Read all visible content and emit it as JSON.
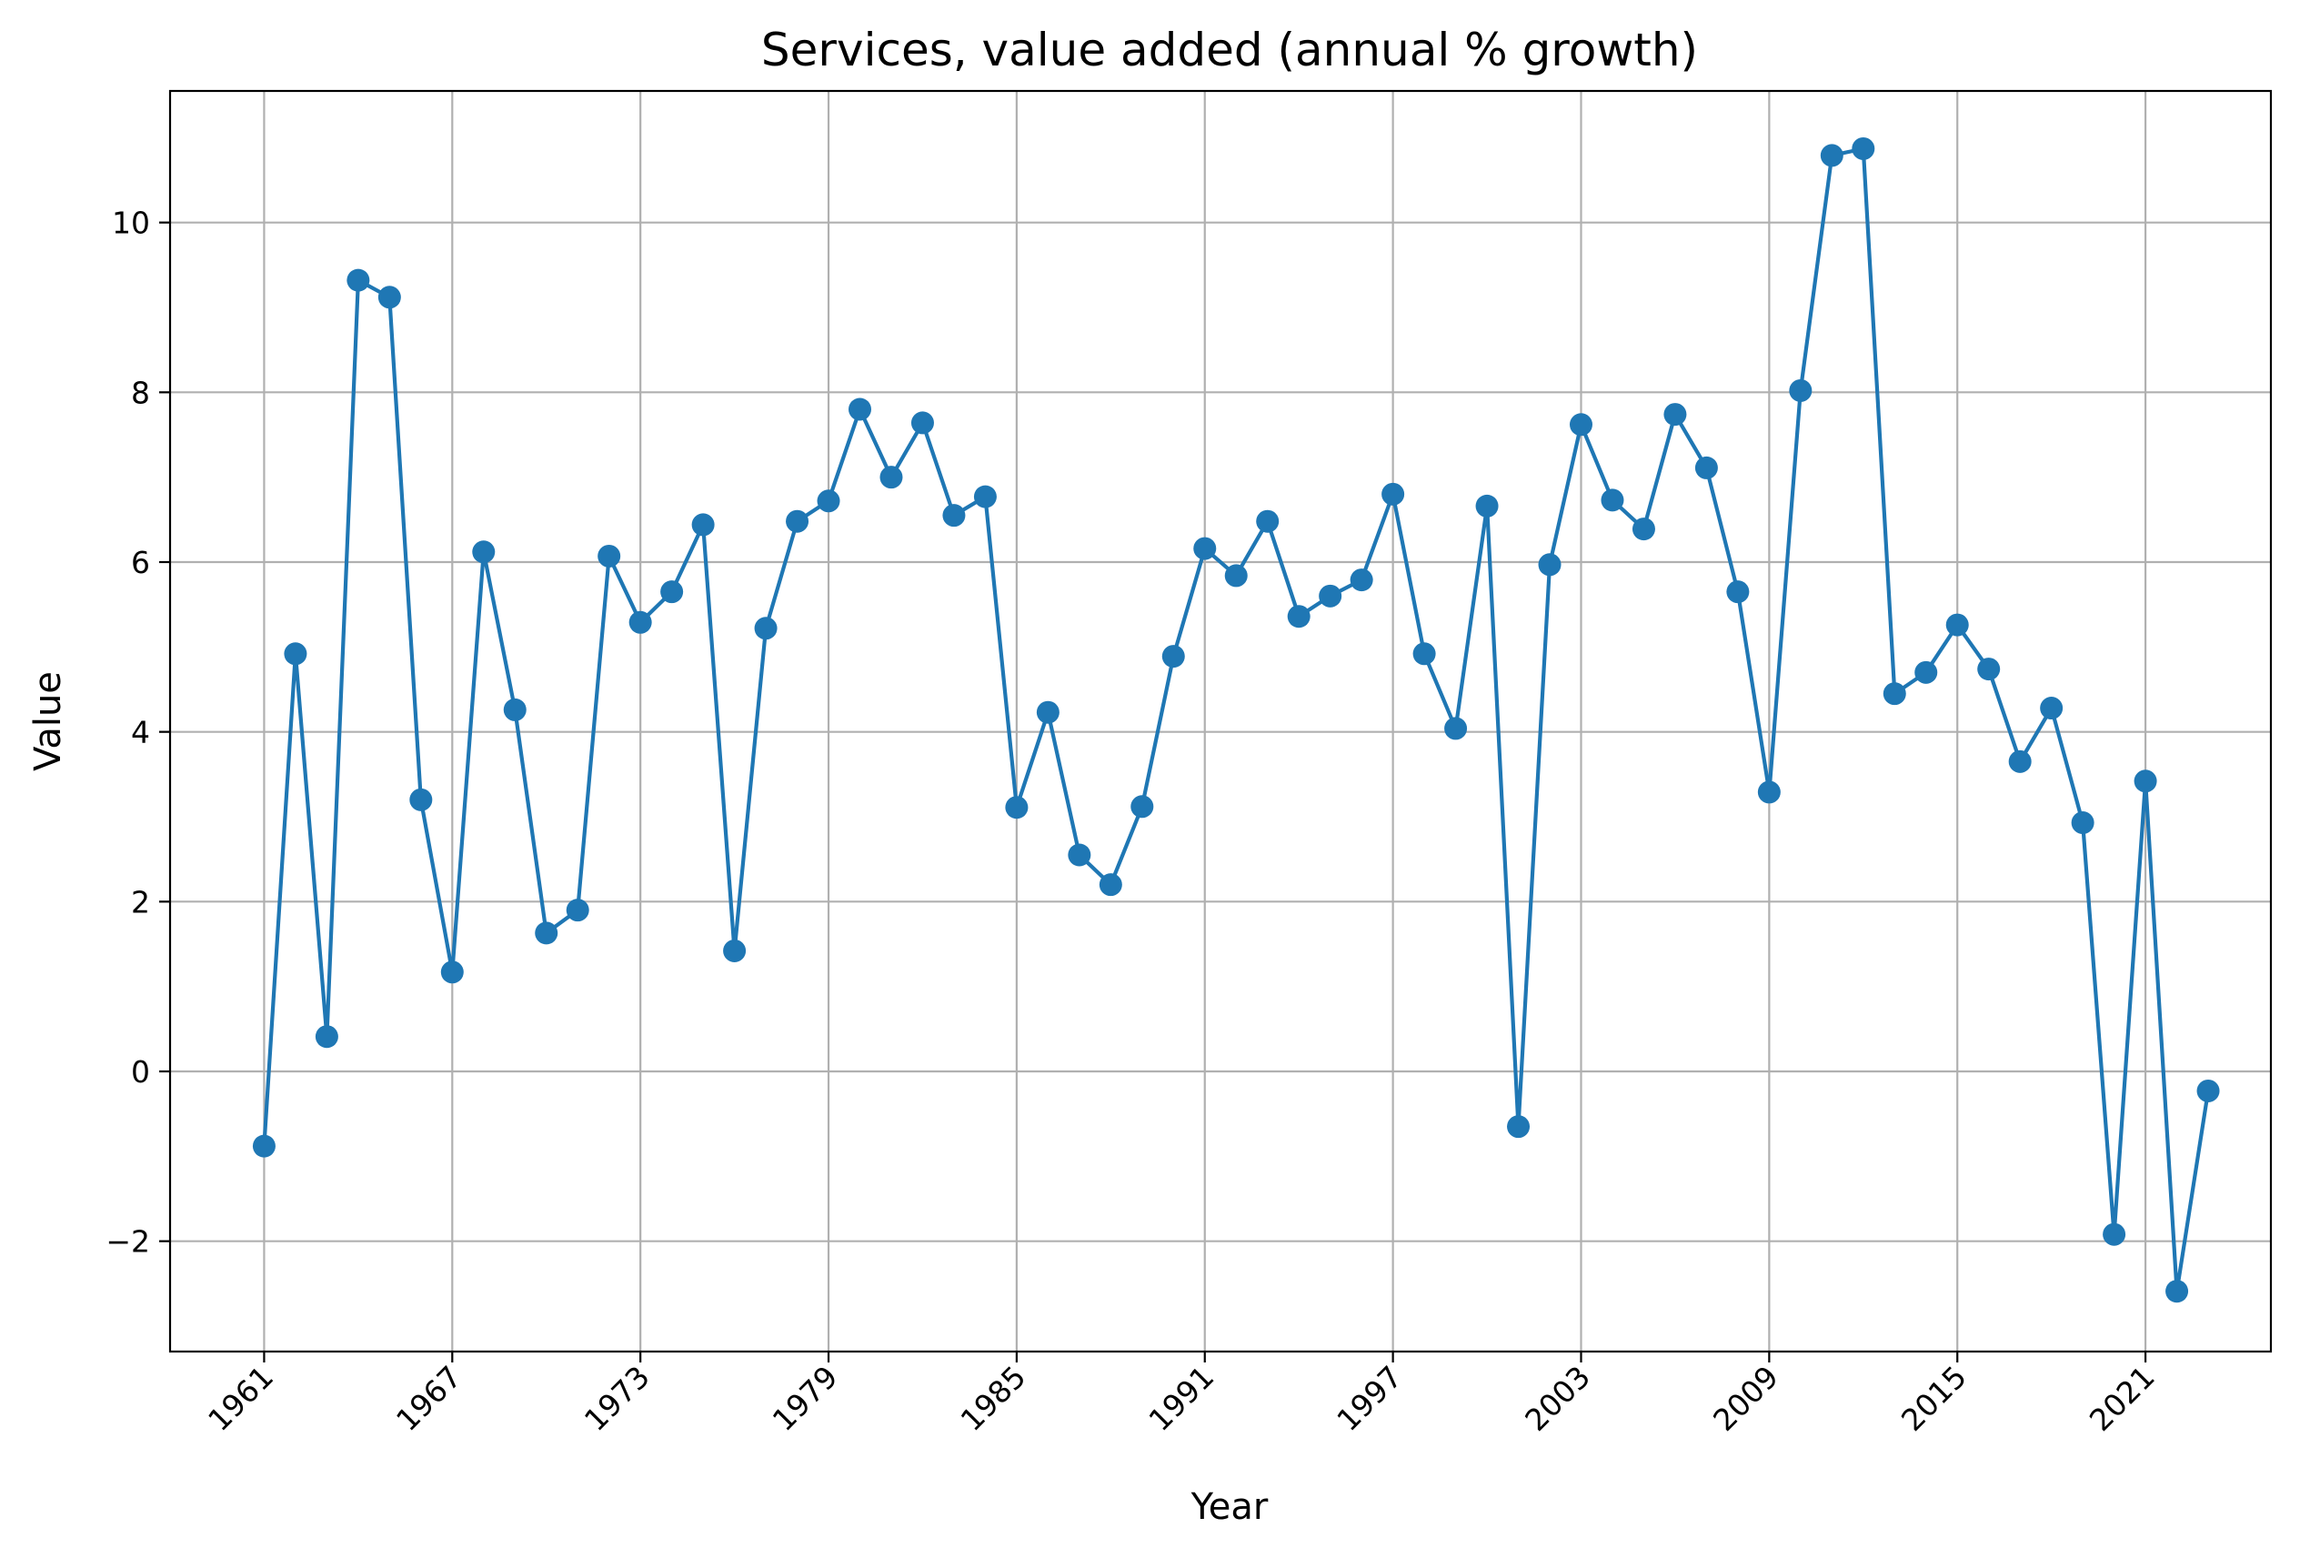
{
  "chart_data": {
    "type": "line",
    "title": "Services, value added (annual % growth)",
    "xlabel": "Year",
    "ylabel": "Value",
    "xlim": [
      1958,
      2025
    ],
    "ylim": [
      -3.3,
      11.55
    ],
    "grid": true,
    "legend": "none",
    "x_ticks": [
      1961,
      1967,
      1973,
      1979,
      1985,
      1991,
      1997,
      2003,
      2009,
      2015,
      2021
    ],
    "y_ticks": [
      -2,
      0,
      2,
      4,
      6,
      8,
      10
    ],
    "y_tick_labels": [
      "−2",
      "0",
      "2",
      "4",
      "6",
      "8",
      "10"
    ],
    "series": [
      {
        "color": "#1f77b4",
        "marker": "circle",
        "x": [
          1961,
          1962,
          1963,
          1964,
          1965,
          1966,
          1967,
          1968,
          1969,
          1970,
          1971,
          1972,
          1973,
          1974,
          1975,
          1976,
          1977,
          1978,
          1979,
          1980,
          1981,
          1982,
          1983,
          1984,
          1985,
          1986,
          1987,
          1988,
          1989,
          1990,
          1991,
          1992,
          1993,
          1994,
          1995,
          1996,
          1997,
          1998,
          1999,
          2000,
          2001,
          2002,
          2003,
          2004,
          2005,
          2006,
          2007,
          2008,
          2009,
          2010,
          2011,
          2012,
          2013,
          2014,
          2015,
          2016,
          2017,
          2018,
          2019,
          2020,
          2021,
          2022,
          2023
        ],
        "values": [
          -0.88,
          4.92,
          0.41,
          9.32,
          9.12,
          3.2,
          1.17,
          6.12,
          4.26,
          1.63,
          1.9,
          6.07,
          5.29,
          5.65,
          6.44,
          1.42,
          5.22,
          6.48,
          6.72,
          7.8,
          7.0,
          7.64,
          6.55,
          6.77,
          3.11,
          4.23,
          2.55,
          2.2,
          3.12,
          4.89,
          6.16,
          5.84,
          6.48,
          5.36,
          5.6,
          5.79,
          6.8,
          4.92,
          4.04,
          6.66,
          -0.65,
          5.97,
          7.62,
          6.73,
          6.39,
          7.74,
          7.11,
          5.65,
          3.29,
          8.02,
          10.79,
          10.87,
          4.45,
          4.7,
          5.26,
          4.74,
          3.65,
          4.28,
          2.93,
          -1.92,
          3.42,
          -2.59,
          -0.23
        ]
      }
    ]
  }
}
